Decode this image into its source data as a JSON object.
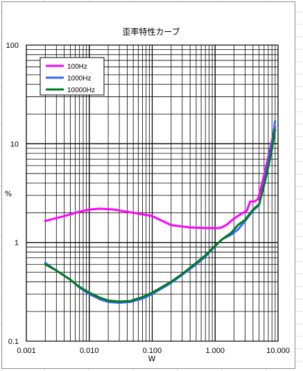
{
  "chart_data": {
    "type": "line",
    "title": "歪率特性カーブ",
    "xlabel": "W",
    "ylabel": "%",
    "x_scale": "log",
    "y_scale": "log",
    "xlim": [
      0.001,
      10
    ],
    "ylim": [
      0.1,
      100
    ],
    "grid": true,
    "legend_position": "top-left",
    "x_tick_labels": [
      "0.001",
      "0.010",
      "0.100",
      "1.000",
      "10.000"
    ],
    "y_tick_labels": [
      "0.1",
      "1",
      "10",
      "100"
    ],
    "series": [
      {
        "name": "100Hz",
        "color": "#ff00ff",
        "points": [
          [
            0.002,
            1.65
          ],
          [
            0.004,
            1.85
          ],
          [
            0.007,
            2.05
          ],
          [
            0.01,
            2.15
          ],
          [
            0.015,
            2.2
          ],
          [
            0.025,
            2.15
          ],
          [
            0.05,
            2.0
          ],
          [
            0.1,
            1.85
          ],
          [
            0.2,
            1.5
          ],
          [
            0.4,
            1.42
          ],
          [
            0.7,
            1.4
          ],
          [
            1.2,
            1.4
          ],
          [
            1.5,
            1.5
          ],
          [
            2.0,
            1.75
          ],
          [
            2.6,
            1.95
          ],
          [
            3.2,
            2.1
          ],
          [
            3.6,
            2.6
          ],
          [
            4.2,
            2.6
          ],
          [
            4.8,
            2.75
          ],
          [
            5.5,
            3.8
          ],
          [
            6.5,
            6.0
          ],
          [
            7.5,
            9.0
          ],
          [
            8.3,
            12.0
          ],
          [
            9.0,
            15.0
          ]
        ]
      },
      {
        "name": "1000Hz",
        "color": "#3366ff",
        "points": [
          [
            0.002,
            0.62
          ],
          [
            0.003,
            0.52
          ],
          [
            0.005,
            0.42
          ],
          [
            0.007,
            0.35
          ],
          [
            0.01,
            0.3
          ],
          [
            0.015,
            0.265
          ],
          [
            0.02,
            0.25
          ],
          [
            0.03,
            0.245
          ],
          [
            0.045,
            0.25
          ],
          [
            0.07,
            0.27
          ],
          [
            0.1,
            0.3
          ],
          [
            0.15,
            0.35
          ],
          [
            0.2,
            0.39
          ],
          [
            0.3,
            0.47
          ],
          [
            0.5,
            0.6
          ],
          [
            0.7,
            0.72
          ],
          [
            1.0,
            0.92
          ],
          [
            1.3,
            1.08
          ],
          [
            1.8,
            1.2
          ],
          [
            2.3,
            1.35
          ],
          [
            3.0,
            1.65
          ],
          [
            4.0,
            2.1
          ],
          [
            5.0,
            2.4
          ],
          [
            6.0,
            4.0
          ],
          [
            7.0,
            6.5
          ],
          [
            8.0,
            10.0
          ],
          [
            9.0,
            17.0
          ]
        ]
      },
      {
        "name": "10000Hz",
        "color": "#007a1f",
        "points": [
          [
            0.002,
            0.6
          ],
          [
            0.003,
            0.52
          ],
          [
            0.005,
            0.42
          ],
          [
            0.007,
            0.355
          ],
          [
            0.01,
            0.31
          ],
          [
            0.015,
            0.275
          ],
          [
            0.02,
            0.258
          ],
          [
            0.03,
            0.252
          ],
          [
            0.045,
            0.255
          ],
          [
            0.07,
            0.28
          ],
          [
            0.1,
            0.31
          ],
          [
            0.15,
            0.36
          ],
          [
            0.2,
            0.4
          ],
          [
            0.3,
            0.48
          ],
          [
            0.5,
            0.62
          ],
          [
            0.7,
            0.74
          ],
          [
            1.0,
            0.93
          ],
          [
            1.3,
            1.08
          ],
          [
            1.8,
            1.25
          ],
          [
            2.3,
            1.5
          ],
          [
            3.0,
            1.7
          ],
          [
            4.0,
            2.15
          ],
          [
            5.0,
            2.45
          ],
          [
            6.0,
            3.8
          ],
          [
            7.0,
            5.8
          ],
          [
            8.0,
            8.8
          ],
          [
            9.0,
            14.0
          ]
        ]
      }
    ]
  }
}
